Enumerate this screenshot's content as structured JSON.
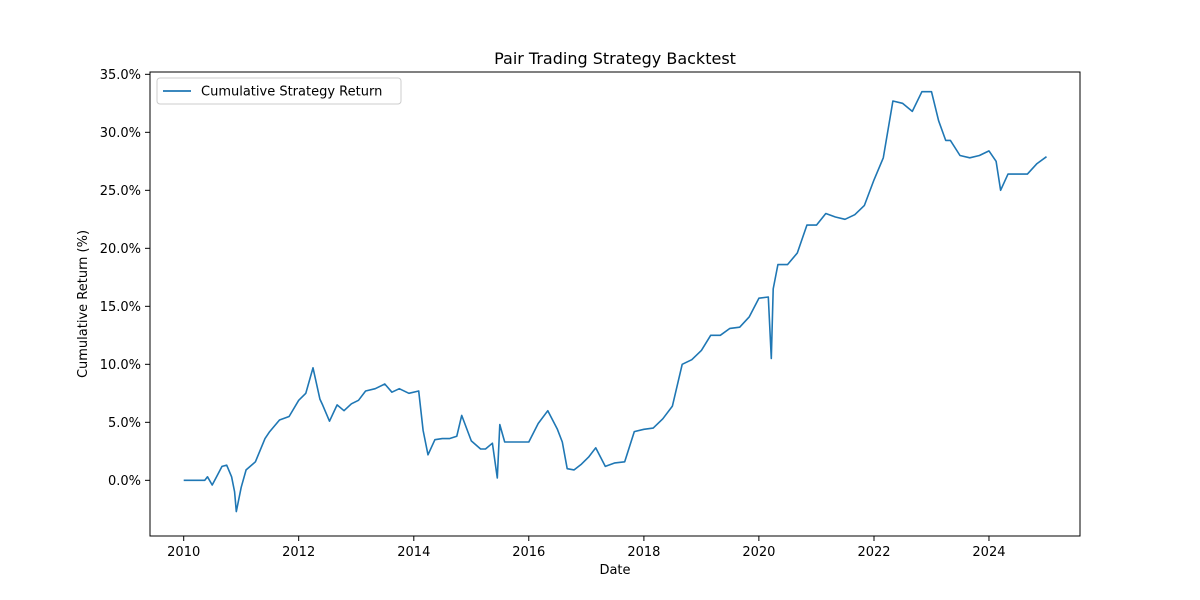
{
  "chart_data": {
    "type": "line",
    "title": "Pair Trading Strategy Backtest",
    "xlabel": "Date",
    "ylabel": "Cumulative Return (%)",
    "xlim": [
      "2009-06-01",
      "2025-08-01"
    ],
    "ylim": [
      -4.8,
      35.2
    ],
    "x_ticks": [
      "2010",
      "2012",
      "2014",
      "2016",
      "2018",
      "2020",
      "2022",
      "2024"
    ],
    "y_ticks": [
      "0.0%",
      "5.0%",
      "10.0%",
      "15.0%",
      "20.0%",
      "25.0%",
      "30.0%",
      "35.0%"
    ],
    "y_tick_values": [
      0,
      5,
      10,
      15,
      20,
      25,
      30,
      35
    ],
    "grid": false,
    "legend_position": "top-left",
    "series": [
      {
        "name": "Cumulative Strategy Return",
        "color": "#1f77b4",
        "x": [
          "2010-01-01",
          "2010-04-01",
          "2010-05-15",
          "2010-06-01",
          "2010-07-01",
          "2010-08-01",
          "2010-09-01",
          "2010-10-01",
          "2010-11-01",
          "2010-11-20",
          "2010-12-01",
          "2011-01-01",
          "2011-02-01",
          "2011-04-01",
          "2011-06-01",
          "2011-07-01",
          "2011-09-01",
          "2011-11-01",
          "2012-01-01",
          "2012-02-15",
          "2012-04-01",
          "2012-05-15",
          "2012-06-01",
          "2012-07-15",
          "2012-09-01",
          "2012-10-15",
          "2012-12-01",
          "2013-01-15",
          "2013-03-01",
          "2013-05-01",
          "2013-07-01",
          "2013-08-15",
          "2013-10-01",
          "2013-12-01",
          "2014-02-01",
          "2014-03-01",
          "2014-04-01",
          "2014-05-15",
          "2014-07-01",
          "2014-08-15",
          "2014-10-01",
          "2014-11-01",
          "2015-01-01",
          "2015-03-01",
          "2015-04-01",
          "2015-05-15",
          "2015-06-15",
          "2015-07-01",
          "2015-08-01",
          "2015-10-01",
          "2016-01-01",
          "2016-03-01",
          "2016-05-01",
          "2016-07-01",
          "2016-08-01",
          "2016-09-01",
          "2016-10-15",
          "2016-12-01",
          "2017-01-15",
          "2017-03-01",
          "2017-05-01",
          "2017-07-01",
          "2017-09-01",
          "2017-11-01",
          "2018-01-01",
          "2018-03-01",
          "2018-05-01",
          "2018-07-01",
          "2018-09-01",
          "2018-11-01",
          "2019-01-01",
          "2019-03-01",
          "2019-05-01",
          "2019-07-01",
          "2019-09-01",
          "2019-11-01",
          "2020-01-01",
          "2020-03-01",
          "2020-03-20",
          "2020-04-01",
          "2020-05-01",
          "2020-07-01",
          "2020-09-01",
          "2020-11-01",
          "2021-01-01",
          "2021-03-01",
          "2021-05-01",
          "2021-07-01",
          "2021-09-01",
          "2021-11-01",
          "2022-01-01",
          "2022-03-01",
          "2022-05-01",
          "2022-07-01",
          "2022-09-01",
          "2022-11-01",
          "2023-01-01",
          "2023-02-15",
          "2023-04-01",
          "2023-05-01",
          "2023-07-01",
          "2023-09-01",
          "2023-11-01",
          "2024-01-01",
          "2024-02-15",
          "2024-03-15",
          "2024-05-01",
          "2024-07-01",
          "2024-09-01",
          "2024-11-01",
          "2024-12-31"
        ],
        "values": [
          0.0,
          0.0,
          0.0,
          0.3,
          -0.4,
          0.4,
          1.2,
          1.3,
          0.3,
          -1.0,
          -2.7,
          -0.6,
          0.9,
          1.6,
          3.6,
          4.2,
          5.2,
          5.5,
          6.9,
          7.5,
          9.7,
          7.0,
          6.5,
          5.1,
          6.5,
          6.0,
          6.6,
          6.9,
          7.7,
          7.9,
          8.3,
          7.6,
          7.9,
          7.5,
          7.7,
          4.3,
          2.2,
          3.5,
          3.6,
          3.6,
          3.8,
          5.6,
          3.4,
          2.7,
          2.7,
          3.2,
          0.2,
          4.8,
          3.3,
          3.3,
          3.3,
          4.9,
          6.0,
          4.4,
          3.3,
          1.0,
          0.9,
          1.4,
          2.0,
          2.8,
          1.2,
          1.5,
          1.6,
          4.2,
          4.4,
          4.5,
          5.3,
          6.4,
          10.0,
          10.4,
          11.2,
          12.5,
          12.5,
          13.1,
          13.2,
          14.1,
          15.7,
          15.8,
          10.5,
          16.5,
          18.6,
          18.6,
          19.6,
          22.0,
          22.0,
          23.0,
          22.7,
          22.5,
          22.9,
          23.7,
          25.9,
          27.8,
          32.7,
          32.5,
          31.8,
          33.5,
          33.5,
          31.0,
          29.3,
          29.3,
          28.0,
          27.8,
          28.0,
          28.4,
          27.5,
          25.0,
          26.4,
          26.4,
          26.4,
          27.3,
          27.9
        ]
      }
    ]
  }
}
